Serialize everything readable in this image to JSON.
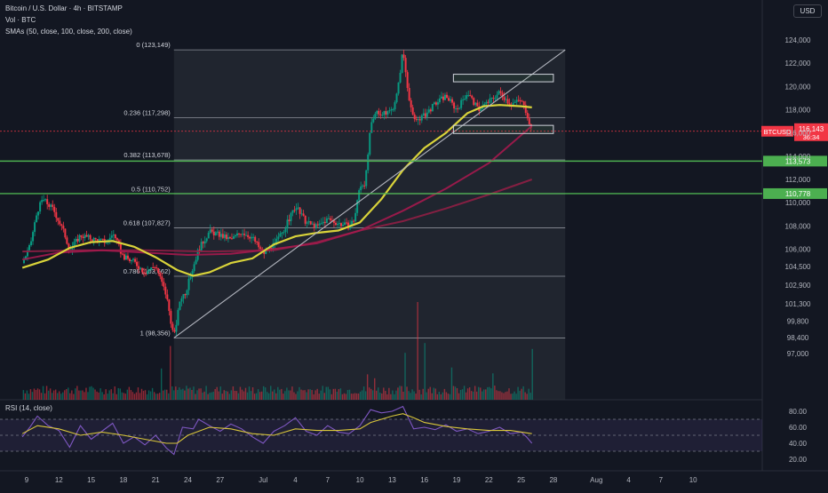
{
  "header": {
    "line1": "Bitcoin / U.S. Dollar · 4h · BITSTAMP",
    "line2": "Vol · BTC",
    "line3": "SMAs (50, close, 100, close, 200, close)",
    "currency_button": "USD"
  },
  "rsi_label": "RSI (14, close)",
  "colors": {
    "background": "#131722",
    "bull_candle": "#089981",
    "bear_candle": "#f23645",
    "sma50": "#d9d33a",
    "sma100": "#a5194e",
    "sma200": "#8f1f45",
    "fib_line": "#b2b5be",
    "green_level": "#4caf50",
    "rsi_line": "#7e57c2",
    "rsi_ma": "#d9c63a"
  },
  "chart_data": {
    "type": "candlestick",
    "symbol": "BTCUSD",
    "timeframe": "4h",
    "exchange": "BITSTAMP",
    "price_axis": {
      "range": [
        96200,
        125200
      ],
      "tick_labels": [
        "124,000",
        "122,000",
        "120,000",
        "118,000",
        "116,000",
        "114,000",
        "112,000",
        "110,000",
        "108,000",
        "106,000",
        "104,500",
        "102,900",
        "101,300",
        "99,800",
        "98,400",
        "97,000"
      ],
      "tick_values": [
        124000,
        122000,
        120000,
        118000,
        116000,
        114000,
        112000,
        110000,
        108000,
        106000,
        104500,
        102900,
        101300,
        99800,
        98400,
        97000
      ]
    },
    "time_axis": {
      "labels": [
        "9",
        "12",
        "15",
        "18",
        "21",
        "24",
        "27",
        "Jul",
        "4",
        "7",
        "10",
        "13",
        "16",
        "19",
        "22",
        "25",
        "28",
        "Aug",
        "4",
        "7",
        "10"
      ],
      "day_index": [
        9,
        12,
        15,
        18,
        21,
        24,
        27,
        31,
        34,
        37,
        40,
        43,
        46,
        49,
        52,
        55,
        58,
        62,
        65,
        68,
        71
      ]
    },
    "last_price": {
      "label": "BTCUSD",
      "value": "116,143",
      "countdown": "36:34",
      "value_num": 116143
    },
    "horizontal_levels": [
      {
        "label": "113,573",
        "value": 113573
      },
      {
        "label": "110,778",
        "value": 110778
      }
    ],
    "fibonacci": [
      {
        "label": "0 (123,149)",
        "value": 123149
      },
      {
        "label": "0.236 (117,298)",
        "value": 117298
      },
      {
        "label": "0.382 (113,678)",
        "value": 113678
      },
      {
        "label": "0.5 (110,752)",
        "value": 110752
      },
      {
        "label": "0.618 (107,827)",
        "value": 107827
      },
      {
        "label": "0.786 (103,662)",
        "value": 103662
      },
      {
        "label": "1 (98,356)",
        "value": 98356
      }
    ],
    "fib_start_day": 22.7,
    "fib_end_day": 59.1,
    "zones": [
      {
        "x0": 48.7,
        "x1": 58.0,
        "y_low": 120400,
        "y_high": 121050
      },
      {
        "x0": 48.7,
        "x1": 58.0,
        "y_low": 115950,
        "y_high": 116650
      }
    ],
    "trendline": {
      "x0": 22.7,
      "y0": 98356,
      "x1": 59.1,
      "y1": 123149
    },
    "sma50_points": [
      [
        8.6,
        104400
      ],
      [
        11,
        105100
      ],
      [
        13,
        106100
      ],
      [
        15,
        106600
      ],
      [
        17,
        106700
      ],
      [
        19,
        106200
      ],
      [
        21,
        105300
      ],
      [
        23,
        104200
      ],
      [
        24.5,
        103700
      ],
      [
        26,
        104000
      ],
      [
        28,
        104800
      ],
      [
        30,
        105200
      ],
      [
        32,
        106400
      ],
      [
        34,
        107100
      ],
      [
        36,
        107400
      ],
      [
        38,
        107600
      ],
      [
        40,
        108300
      ],
      [
        42,
        110300
      ],
      [
        44,
        112800
      ],
      [
        46,
        114700
      ],
      [
        48,
        116000
      ],
      [
        50,
        117700
      ],
      [
        51.5,
        118300
      ],
      [
        53,
        118400
      ],
      [
        55,
        118300
      ],
      [
        56,
        118200
      ]
    ],
    "sma100_points": [
      [
        8.6,
        105100
      ],
      [
        12,
        105700
      ],
      [
        16,
        105900
      ],
      [
        20,
        105700
      ],
      [
        24,
        105500
      ],
      [
        28,
        105600
      ],
      [
        32,
        106000
      ],
      [
        36,
        106500
      ],
      [
        40,
        107600
      ],
      [
        44,
        109300
      ],
      [
        48,
        111200
      ],
      [
        52,
        113400
      ],
      [
        56,
        116600
      ]
    ],
    "sma200_points": [
      [
        8.6,
        105800
      ],
      [
        14,
        105900
      ],
      [
        20,
        105900
      ],
      [
        26,
        105800
      ],
      [
        32,
        105900
      ],
      [
        36,
        106600
      ],
      [
        40,
        107600
      ],
      [
        44,
        108400
      ],
      [
        48,
        109500
      ],
      [
        52,
        110700
      ],
      [
        56,
        112000
      ]
    ],
    "price_path": [
      [
        8.6,
        104800
      ],
      [
        9.3,
        106200
      ],
      [
        10,
        109300
      ],
      [
        10.5,
        110300
      ],
      [
        11.5,
        109400
      ],
      [
        12.5,
        107400
      ],
      [
        13,
        105900
      ],
      [
        14,
        107200
      ],
      [
        15,
        106900
      ],
      [
        16.5,
        106600
      ],
      [
        17,
        107400
      ],
      [
        18,
        105300
      ],
      [
        19,
        104900
      ],
      [
        20,
        104000
      ],
      [
        21,
        104600
      ],
      [
        22,
        102000
      ],
      [
        22.7,
        98356
      ],
      [
        23.3,
        101800
      ],
      [
        23.8,
        102300
      ],
      [
        24.5,
        104500
      ],
      [
        25,
        106000
      ],
      [
        26,
        107500
      ],
      [
        27,
        107200
      ],
      [
        28,
        106800
      ],
      [
        29,
        107500
      ],
      [
        30,
        107000
      ],
      [
        31,
        105600
      ],
      [
        32,
        106300
      ],
      [
        33,
        107800
      ],
      [
        34,
        109700
      ],
      [
        35,
        108300
      ],
      [
        36,
        107900
      ],
      [
        37,
        108600
      ],
      [
        38,
        108200
      ],
      [
        39,
        108000
      ],
      [
        39.5,
        108600
      ],
      [
        40,
        111500
      ],
      [
        40.5,
        111700
      ],
      [
        41,
        116500
      ],
      [
        41.6,
        118000
      ],
      [
        42,
        117500
      ],
      [
        43,
        118000
      ],
      [
        43.5,
        119500
      ],
      [
        44,
        123149
      ],
      [
        44.5,
        119500
      ],
      [
        45,
        117000
      ],
      [
        46,
        117500
      ],
      [
        47,
        118500
      ],
      [
        48,
        119200
      ],
      [
        49,
        118000
      ],
      [
        50,
        119500
      ],
      [
        51,
        118000
      ],
      [
        52,
        118700
      ],
      [
        53,
        119500
      ],
      [
        54,
        118500
      ],
      [
        55,
        118800
      ],
      [
        55.5,
        117800
      ],
      [
        56,
        116143
      ]
    ],
    "volume_spikes": [
      [
        21.6,
        0.32
      ],
      [
        22.4,
        0.55
      ],
      [
        40.7,
        0.26
      ],
      [
        41.3,
        0.22
      ],
      [
        44.2,
        0.48
      ],
      [
        45.3,
        1.0
      ],
      [
        46.1,
        0.58
      ],
      [
        48.5,
        0.33
      ],
      [
        52.3,
        0.27
      ],
      [
        56,
        0.52
      ]
    ],
    "rsi": {
      "axis_labels": [
        "80.00",
        "60.00",
        "40.00",
        "20.00"
      ],
      "axis_values": [
        80,
        60,
        40,
        20
      ],
      "upper": 70,
      "lower": 30,
      "middle": 50,
      "rsi_points": [
        [
          8.6,
          48
        ],
        [
          9.3,
          60
        ],
        [
          10,
          74
        ],
        [
          11,
          62
        ],
        [
          12,
          56
        ],
        [
          13,
          35
        ],
        [
          14,
          62
        ],
        [
          15,
          45
        ],
        [
          16,
          55
        ],
        [
          17,
          65
        ],
        [
          18,
          40
        ],
        [
          19,
          48
        ],
        [
          20,
          38
        ],
        [
          21,
          50
        ],
        [
          22,
          34
        ],
        [
          22.7,
          26
        ],
        [
          23.5,
          60
        ],
        [
          24.5,
          58
        ],
        [
          25,
          70
        ],
        [
          26,
          62
        ],
        [
          27,
          55
        ],
        [
          28,
          64
        ],
        [
          29,
          58
        ],
        [
          30,
          48
        ],
        [
          31,
          40
        ],
        [
          32,
          55
        ],
        [
          33,
          62
        ],
        [
          34,
          72
        ],
        [
          35,
          55
        ],
        [
          36,
          50
        ],
        [
          37,
          62
        ],
        [
          38,
          54
        ],
        [
          39,
          52
        ],
        [
          40,
          62
        ],
        [
          41,
          82
        ],
        [
          42,
          78
        ],
        [
          43,
          80
        ],
        [
          44,
          86
        ],
        [
          45,
          58
        ],
        [
          46,
          60
        ],
        [
          47,
          57
        ],
        [
          48,
          63
        ],
        [
          49,
          55
        ],
        [
          50,
          58
        ],
        [
          51,
          52
        ],
        [
          52,
          55
        ],
        [
          53,
          60
        ],
        [
          54,
          52
        ],
        [
          55,
          54
        ],
        [
          55.5,
          48
        ],
        [
          56,
          40
        ]
      ],
      "ma_points": [
        [
          8.6,
          52
        ],
        [
          10,
          62
        ],
        [
          12,
          58
        ],
        [
          14,
          50
        ],
        [
          16,
          54
        ],
        [
          18,
          50
        ],
        [
          20,
          45
        ],
        [
          22,
          40
        ],
        [
          23,
          40
        ],
        [
          24,
          50
        ],
        [
          26,
          60
        ],
        [
          28,
          58
        ],
        [
          30,
          52
        ],
        [
          32,
          50
        ],
        [
          34,
          58
        ],
        [
          36,
          56
        ],
        [
          38,
          56
        ],
        [
          40,
          58
        ],
        [
          41,
          66
        ],
        [
          43,
          74
        ],
        [
          44,
          77
        ],
        [
          45,
          72
        ],
        [
          46,
          66
        ],
        [
          48,
          61
        ],
        [
          50,
          58
        ],
        [
          52,
          56
        ],
        [
          54,
          56
        ],
        [
          56,
          52
        ]
      ]
    }
  }
}
